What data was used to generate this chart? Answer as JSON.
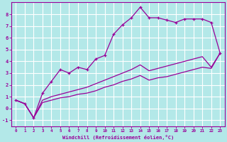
{
  "xlabel": "Windchill (Refroidissement éolien,°C)",
  "bg_color": "#b3e8e8",
  "line_color": "#990099",
  "grid_color": "#ffffff",
  "x_data": [
    0,
    1,
    2,
    3,
    4,
    5,
    6,
    7,
    8,
    9,
    10,
    11,
    12,
    13,
    14,
    15,
    16,
    17,
    18,
    19,
    20,
    21,
    22,
    23
  ],
  "line1_y": [
    0.7,
    0.4,
    -0.8,
    1.3,
    2.3,
    3.3,
    3.0,
    3.5,
    3.3,
    4.2,
    4.5,
    6.3,
    7.1,
    7.7,
    8.6,
    7.7,
    7.7,
    7.5,
    7.3,
    7.6,
    7.6,
    7.6,
    7.3,
    4.7
  ],
  "line2_y": [
    0.7,
    0.4,
    -0.8,
    0.7,
    1.0,
    1.2,
    1.4,
    1.6,
    1.8,
    2.1,
    2.4,
    2.7,
    3.0,
    3.3,
    3.7,
    3.2,
    3.4,
    3.6,
    3.8,
    4.0,
    4.2,
    4.4,
    3.5,
    4.7
  ],
  "line3_y": [
    0.7,
    0.4,
    -0.8,
    0.5,
    0.7,
    0.9,
    1.0,
    1.2,
    1.3,
    1.5,
    1.8,
    2.0,
    2.3,
    2.5,
    2.8,
    2.4,
    2.6,
    2.7,
    2.9,
    3.1,
    3.3,
    3.5,
    3.4,
    4.7
  ],
  "xlim": [
    -0.5,
    23.5
  ],
  "ylim": [
    -1.5,
    9.0
  ],
  "yticks": [
    -1,
    0,
    1,
    2,
    3,
    4,
    5,
    6,
    7,
    8
  ],
  "xticks": [
    0,
    1,
    2,
    3,
    4,
    5,
    6,
    7,
    8,
    9,
    10,
    11,
    12,
    13,
    14,
    15,
    16,
    17,
    18,
    19,
    20,
    21,
    22,
    23
  ],
  "tick_fontsize": 4.2,
  "xlabel_fontsize": 5.0
}
